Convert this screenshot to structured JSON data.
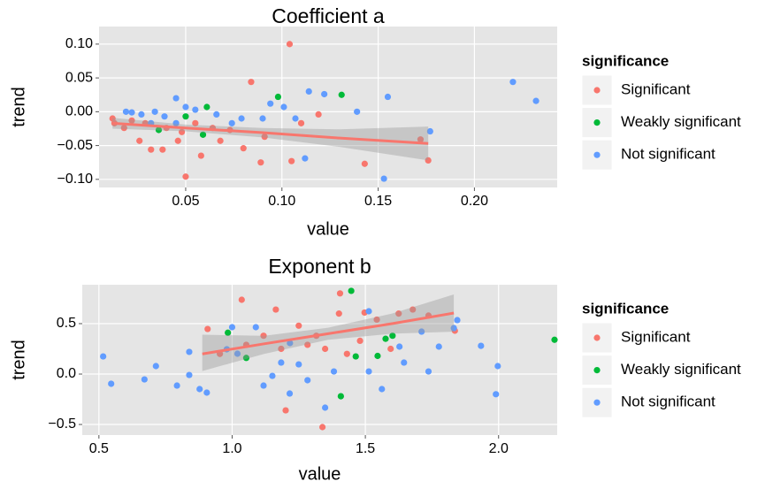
{
  "chart_data": [
    {
      "type": "scatter",
      "title": "Coefficient a",
      "x_label": "value",
      "y_label": "trend",
      "legend_title": "significance",
      "legend_position": "right",
      "grid": true,
      "xlim": [
        0.005,
        0.243
      ],
      "ylim": [
        -0.112,
        0.126
      ],
      "xticks": [
        0.05,
        {
          "value": 0.1,
          "label": "0.10"
        },
        0.15,
        {
          "value": 0.2,
          "label": "0.20"
        }
      ],
      "yticks": [
        {
          "value": -0.1,
          "label": "−0.10"
        },
        {
          "value": -0.05,
          "label": "−0.05"
        },
        {
          "value": 0,
          "label": "0.00"
        },
        0.05,
        {
          "value": 0.1,
          "label": "0.10"
        }
      ],
      "series": [
        {
          "name": "Significant",
          "color": "#F8766D",
          "x": [
            0.104,
            0.084,
            0.05,
            0.143,
            0.176,
            0.172,
            0.105,
            0.089,
            0.058,
            0.032,
            0.038,
            0.026,
            0.046,
            0.073,
            0.08,
            0.068,
            0.091,
            0.013,
            0.018,
            0.022,
            0.029,
            0.04,
            0.055,
            0.064,
            0.119,
            0.11,
            0.012,
            0.048
          ],
          "y": [
            0.1,
            0.044,
            -0.096,
            -0.077,
            -0.072,
            -0.041,
            -0.073,
            -0.075,
            -0.065,
            -0.056,
            -0.056,
            -0.043,
            -0.043,
            -0.027,
            -0.054,
            -0.043,
            -0.037,
            -0.017,
            -0.024,
            -0.013,
            -0.017,
            -0.024,
            -0.017,
            -0.024,
            -0.004,
            -0.017,
            -0.01,
            -0.03
          ]
        },
        {
          "name": "Weakly significant",
          "color": "#00BA38",
          "x": [
            0.061,
            0.098,
            0.131,
            0.05,
            0.036,
            0.059
          ],
          "y": [
            0.007,
            0.022,
            0.025,
            -0.007,
            -0.027,
            -0.034
          ]
        },
        {
          "name": "Not significant",
          "color": "#619CFF",
          "x": [
            0.22,
            0.232,
            0.153,
            0.177,
            0.112,
            0.114,
            0.122,
            0.139,
            0.155,
            0.094,
            0.101,
            0.09,
            0.045,
            0.05,
            0.055,
            0.022,
            0.027,
            0.034,
            0.039,
            0.019,
            0.066,
            0.074,
            0.079,
            0.107,
            0.032,
            0.045
          ],
          "y": [
            0.044,
            0.016,
            -0.099,
            -0.029,
            -0.069,
            0.03,
            0.026,
            0.0,
            0.022,
            0.012,
            0.007,
            -0.01,
            0.02,
            0.007,
            0.003,
            -0.001,
            -0.004,
            0.0,
            -0.007,
            0.0,
            -0.004,
            -0.017,
            -0.01,
            -0.01,
            -0.017,
            -0.017
          ]
        }
      ],
      "fit": {
        "color": "#F8766D",
        "x": [
          0.012,
          0.05,
          0.09,
          0.13,
          0.176
        ],
        "y": [
          -0.017,
          -0.024,
          -0.031,
          -0.039,
          -0.047
        ],
        "lower": [
          -0.025,
          -0.029,
          -0.038,
          -0.052,
          -0.072
        ],
        "upper": [
          -0.009,
          -0.019,
          -0.024,
          -0.026,
          -0.022
        ]
      }
    },
    {
      "type": "scatter",
      "title": "Exponent b",
      "x_label": "value",
      "y_label": "trend",
      "legend_title": "significance",
      "legend_position": "right",
      "grid": true,
      "xlim": [
        0.4375,
        2.22
      ],
      "ylim": [
        -0.605,
        0.886
      ],
      "xticks": [
        0.5,
        {
          "value": 1,
          "label": "1.0"
        },
        1.5,
        {
          "value": 2,
          "label": "2.0"
        }
      ],
      "yticks": [
        {
          "value": -0.5,
          "label": "−0.5"
        },
        {
          "value": 0,
          "label": "0.0"
        },
        0.5
      ],
      "series": [
        {
          "name": "Significant",
          "color": "#F8766D",
          "x": [
            1.339,
            1.201,
            1.036,
            1.164,
            1.405,
            0.908,
            1.401,
            1.497,
            1.625,
            1.737,
            1.836,
            1.678,
            1.543,
            1.25,
            1.316,
            1.118,
            1.053,
            1.184,
            1.283,
            1.431,
            1.48,
            0.954,
            1.349,
            1.595
          ],
          "y": [
            -0.526,
            -0.36,
            0.737,
            0.64,
            0.8,
            0.447,
            0.6,
            0.61,
            0.6,
            0.58,
            0.43,
            0.64,
            0.54,
            0.48,
            0.38,
            0.38,
            0.29,
            0.25,
            0.29,
            0.2,
            0.33,
            0.2,
            0.25,
            0.25
          ]
        },
        {
          "name": "Weakly significant",
          "color": "#00BA38",
          "x": [
            1.447,
            0.984,
            1.602,
            1.576,
            1.408,
            2.21,
            1.546,
            1.053,
            1.464
          ],
          "y": [
            0.825,
            0.41,
            0.38,
            0.35,
            -0.22,
            0.34,
            0.18,
            0.16,
            0.175
          ]
        },
        {
          "name": "Not significant",
          "color": "#619CFF",
          "x": [
            0.516,
            0.546,
            0.714,
            0.671,
            0.793,
            0.839,
            0.839,
            0.878,
            0.905,
            1.997,
            1.99,
            1.934,
            1.845,
            1.832,
            1.0,
            1.089,
            1.118,
            1.216,
            1.283,
            1.349,
            1.382,
            1.513,
            1.562,
            1.645,
            1.737,
            1.776,
            1.513,
            1.711,
            1.184,
            1.25,
            1.151,
            1.02,
            1.217,
            1.628,
            0.98
          ],
          "y": [
            0.175,
            -0.096,
            0.079,
            -0.053,
            -0.114,
            -0.009,
            0.22,
            -0.149,
            -0.184,
            0.079,
            -0.2,
            0.28,
            0.535,
            0.456,
            0.465,
            0.465,
            -0.114,
            -0.193,
            -0.061,
            -0.333,
            0.026,
            0.026,
            -0.149,
            0.114,
            0.026,
            0.272,
            0.623,
            0.421,
            0.114,
            0.096,
            -0.018,
            0.202,
            0.307,
            0.272,
            0.246
          ]
        }
      ],
      "fit": {
        "color": "#F8766D",
        "x": [
          0.888,
          1.12,
          1.36,
          1.6,
          1.832
        ],
        "y": [
          0.2,
          0.3,
          0.4,
          0.5,
          0.605
        ],
        "lower": [
          0.03,
          0.2,
          0.34,
          0.4,
          0.42
        ],
        "upper": [
          0.39,
          0.38,
          0.46,
          0.6,
          0.79
        ]
      }
    }
  ]
}
